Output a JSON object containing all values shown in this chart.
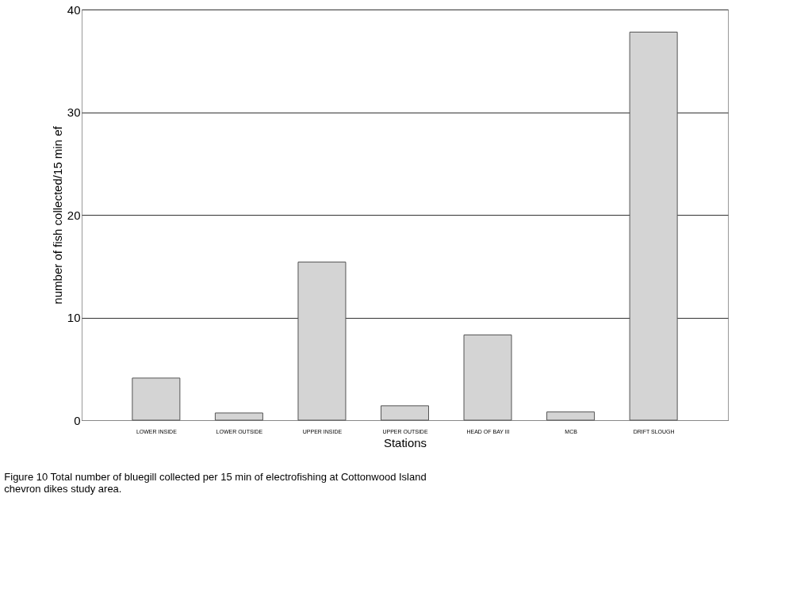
{
  "chart_data": {
    "type": "bar",
    "xlabel": "Stations",
    "ylabel": "number of fish collected/15 min ef",
    "categories": [
      "LOWER INSIDE",
      "LOWER OUTSIDE",
      "UPPER INSIDE",
      "UPPER OUTSIDE",
      "HEAD OF BAY III",
      "MCB",
      "DRIFT SLOUGH"
    ],
    "values": [
      4.1,
      0.7,
      15.4,
      1.4,
      8.3,
      0.8,
      37.8
    ],
    "color": "#d4d4d4",
    "ylim": [
      0,
      40
    ],
    "yticks": [
      0,
      10,
      20,
      30,
      40
    ],
    "grid": "y",
    "annotations": [
      "Figure 10  Total number of bluegill collected per 15 min of electrofishing at Cottonwood Island chevron dikes study area."
    ]
  }
}
